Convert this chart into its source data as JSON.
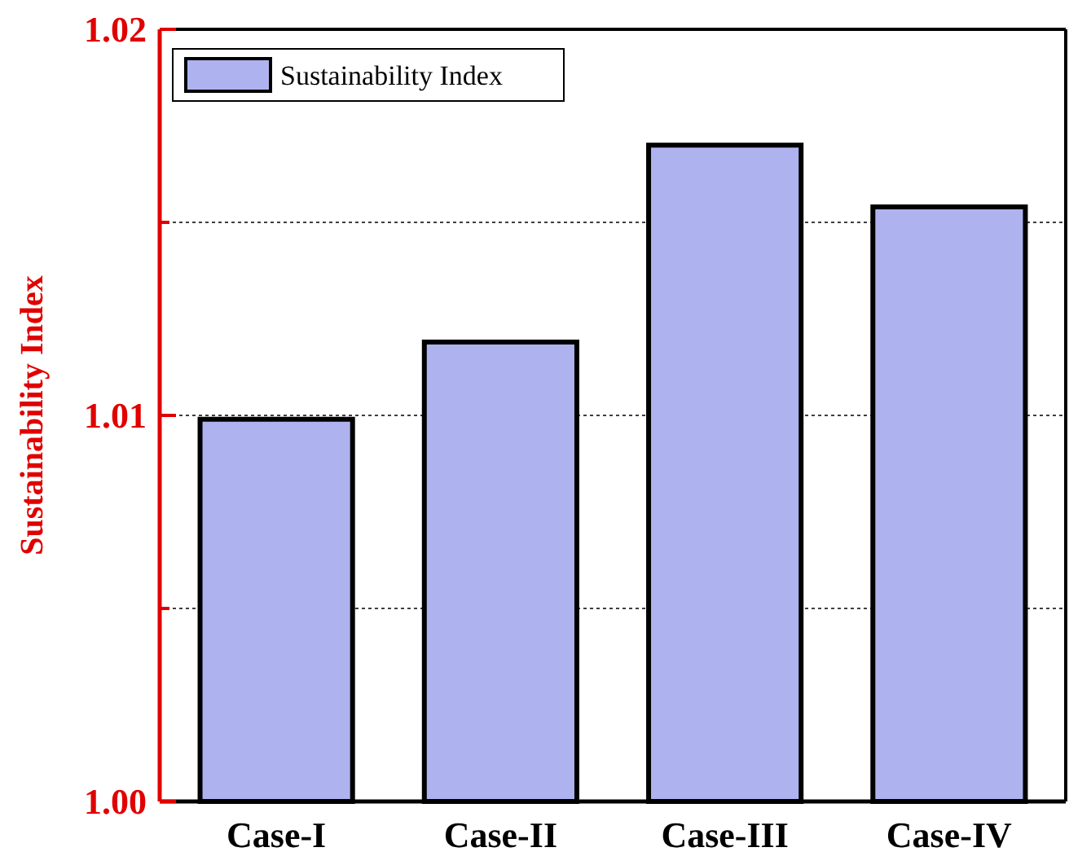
{
  "chart_data": {
    "type": "bar",
    "ylabel": "Sustainability Index",
    "categories": [
      "Case-I",
      "Case-II",
      "Case-III",
      "Case-IV"
    ],
    "series": [
      {
        "name": "Sustainability Index",
        "color": "#aeb3ef",
        "values": [
          1.0099,
          1.0119,
          1.017,
          1.0154
        ]
      }
    ],
    "ylim": [
      1.0,
      1.02
    ],
    "yticks": [
      {
        "value": 1.0,
        "label": "1.00"
      },
      {
        "value": 1.005,
        "label": null
      },
      {
        "value": 1.01,
        "label": "1.01"
      },
      {
        "value": 1.015,
        "label": null
      },
      {
        "value": 1.02,
        "label": "1.02"
      }
    ],
    "grid": "y",
    "legend": "top left"
  }
}
